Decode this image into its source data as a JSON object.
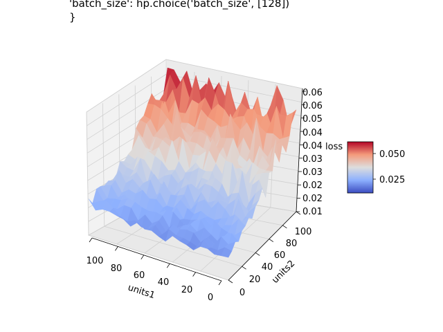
{
  "title_lines": [
    "'batch_size': hp.choice('batch_size', [128])",
    "}"
  ],
  "chart_data": {
    "type": "surface3d",
    "xlabel": "units1",
    "ylabel": "units2",
    "zlabel": "loss",
    "x_ticks": [
      "100",
      "80",
      "60",
      "40",
      "20",
      "0"
    ],
    "y_ticks": [
      "0",
      "20",
      "40",
      "60",
      "80",
      "100"
    ],
    "z_ticks": [
      "0.01",
      "0.02",
      "0.02",
      "0.03",
      "0.03",
      "0.04",
      "0.04",
      "0.05",
      "0.06",
      "0.06"
    ],
    "zlim": [
      0.01,
      0.06
    ],
    "colormap": "coolwarm",
    "colorbar": {
      "ticks": [
        "0.025",
        "0.050"
      ],
      "range": [
        0.015,
        0.058
      ]
    },
    "colors": {
      "low": "#3b4cc0",
      "mid": "#dddddd",
      "high": "#b40426",
      "pane": "#f2f2f2",
      "grid": "#cccccc"
    },
    "grid": true
  }
}
